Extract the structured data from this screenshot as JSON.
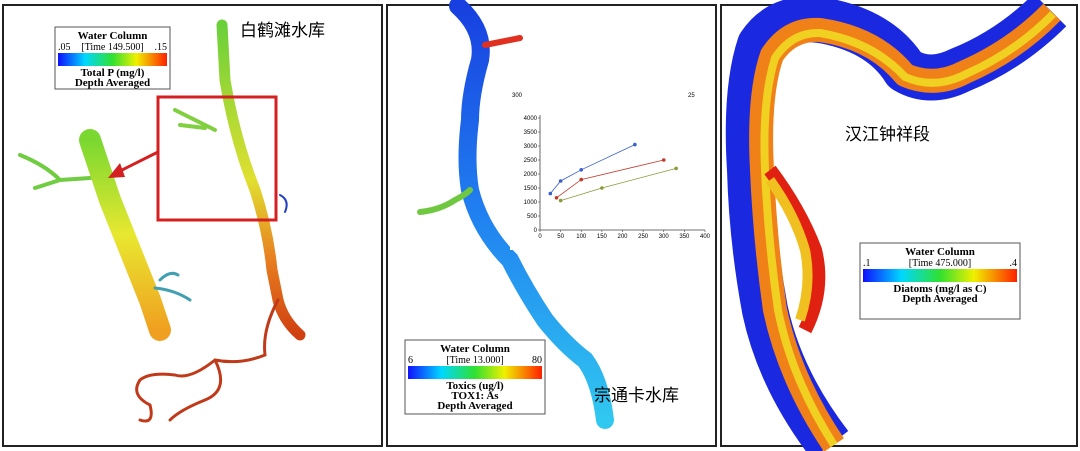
{
  "panels": [
    {
      "label": "白鹤滩水库",
      "legend": {
        "title": "Water Column",
        "time": "[Time 149.500]",
        "min": ".05",
        "max": ".15",
        "variable": "Total P (mg/l)",
        "note": "Depth Averaged"
      }
    },
    {
      "label": "宗通卡水库",
      "legend": {
        "title": "Water Column",
        "time": "[Time 13.000]",
        "min": "6",
        "max": "80",
        "variable": "Toxics (ug/l)",
        "sub": "TOX1: As",
        "note": "Depth Averaged"
      },
      "inset": {
        "top_left": "300",
        "top_right": "25",
        "xlim": [
          0,
          400
        ],
        "ylim": [
          0,
          4000
        ],
        "xticks": [
          0,
          50,
          100,
          150,
          200,
          250,
          300,
          350,
          400
        ],
        "yticks": [
          0,
          500,
          1000,
          1500,
          2000,
          2500,
          3000,
          3500,
          4000
        ],
        "series": [
          {
            "color": "#3a5fc8",
            "x": [
              25,
              50,
              100,
              230
            ],
            "values": [
              1300,
              1750,
              2150,
              3050
            ]
          },
          {
            "color": "#c0392b",
            "x": [
              40,
              100,
              300
            ],
            "values": [
              1150,
              1800,
              2500
            ]
          },
          {
            "color": "#8a9a3a",
            "x": [
              50,
              150,
              330
            ],
            "values": [
              1050,
              1500,
              2200
            ]
          }
        ]
      }
    },
    {
      "label": "汉江钟祥段",
      "legend": {
        "title": "Water Column",
        "time": "[Time 475.000]",
        "min": ".1",
        "max": ".4",
        "variable": "Diatoms (mg/l as C)",
        "note": "Depth Averaged"
      }
    }
  ]
}
